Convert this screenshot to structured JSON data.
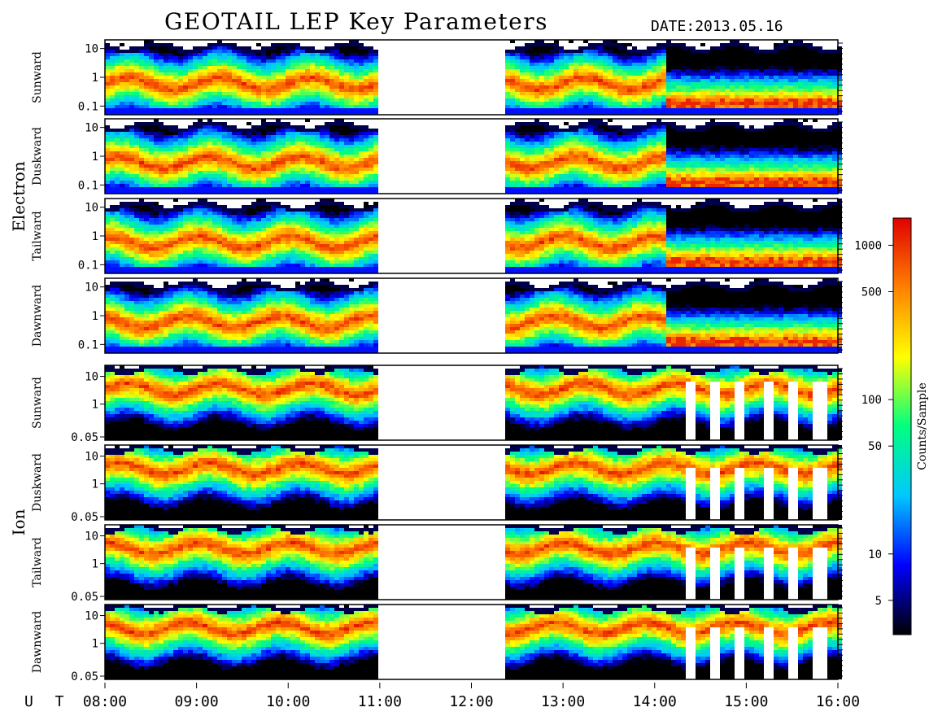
{
  "header": {
    "title": "GEOTAIL LEP Key Parameters",
    "date_label": "DATE:",
    "date_value": "2013.05.16"
  },
  "chart_data": {
    "type": "heatmap",
    "title": "GEOTAIL LEP Key Parameters",
    "x_axis": {
      "label": "U T",
      "range": [
        "08:00",
        "16:00"
      ],
      "ticks": [
        "08:00",
        "09:00",
        "10:00",
        "11:00",
        "12:00",
        "13:00",
        "14:00",
        "15:00",
        "16:00"
      ]
    },
    "data_gap": {
      "start": "11:00",
      "end": "12:20"
    },
    "groups": [
      {
        "name": "Electron",
        "y_scale": "log",
        "y_range": [
          0.05,
          20
        ],
        "y_ticks": [
          "10",
          "1",
          "0.1"
        ],
        "panels": [
          {
            "label": "Sunward"
          },
          {
            "label": "Duskward"
          },
          {
            "label": "Tailward"
          },
          {
            "label": "Dawnward"
          }
        ]
      },
      {
        "name": "Ion",
        "y_scale": "log",
        "y_range": [
          0.05,
          25
        ],
        "y_ticks": [
          "10",
          "1",
          "0.05"
        ],
        "panels": [
          {
            "label": "Sunward"
          },
          {
            "label": "Duskward"
          },
          {
            "label": "Tailward"
          },
          {
            "label": "Dawnward"
          }
        ]
      }
    ],
    "colorbar": {
      "label": "Counts/Sample",
      "scale": "log",
      "range": [
        3,
        1500
      ],
      "ticks": [
        "1000",
        "500",
        "100",
        "50",
        "10",
        "5"
      ],
      "colors": [
        "#000000",
        "#0000ff",
        "#00c8ff",
        "#00ff80",
        "#ffff00",
        "#ff8000",
        "#e00000"
      ]
    }
  }
}
